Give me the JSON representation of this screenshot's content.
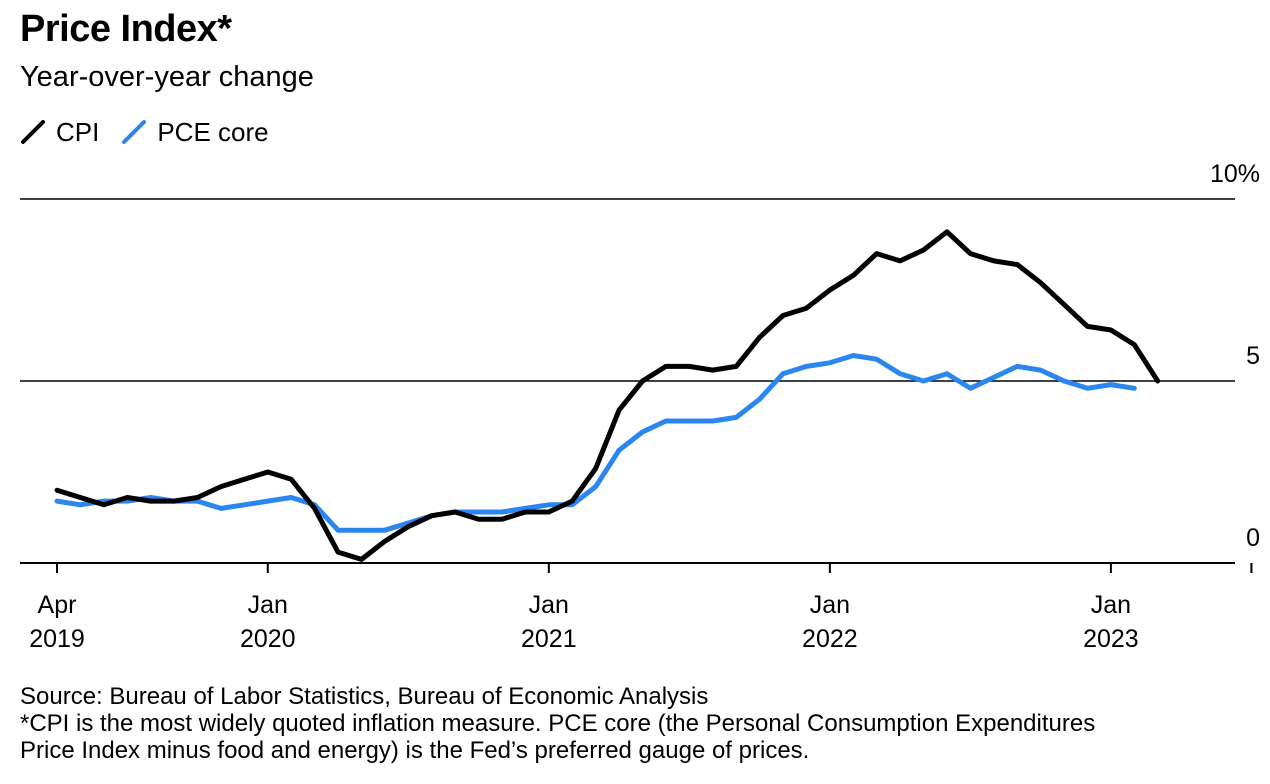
{
  "header": {
    "title": "Price Index*",
    "subtitle": "Year-over-year change"
  },
  "legend": [
    {
      "label": "CPI",
      "color": "#000000"
    },
    {
      "label": "PCE core",
      "color": "#2b86f0"
    }
  ],
  "chart_data": {
    "type": "line",
    "title": "Price Index*",
    "subtitle": "Year-over-year change",
    "xlabel": "",
    "ylabel": "",
    "ylim": [
      0,
      10
    ],
    "y_ticks": [
      {
        "value": 10,
        "label": "10%"
      },
      {
        "value": 5,
        "label": "5"
      },
      {
        "value": 0,
        "label": "0"
      }
    ],
    "x_start": "2019-04",
    "x_end": "2023-07",
    "x_ticks": [
      {
        "month_index": 0,
        "line1": "Apr",
        "line2": "2019"
      },
      {
        "month_index": 9,
        "line1": "Jan",
        "line2": "2020"
      },
      {
        "month_index": 21,
        "line1": "Jan",
        "line2": "2021"
      },
      {
        "month_index": 33,
        "line1": "Jan",
        "line2": "2022"
      },
      {
        "month_index": 45,
        "line1": "Jan",
        "line2": "2023"
      }
    ],
    "grid_lines": [
      0,
      5,
      10
    ],
    "series": [
      {
        "name": "CPI",
        "color": "#000000",
        "start": "2019-04",
        "values": [
          2.0,
          1.8,
          1.6,
          1.8,
          1.7,
          1.7,
          1.8,
          2.1,
          2.3,
          2.5,
          2.3,
          1.5,
          0.3,
          0.1,
          0.6,
          1.0,
          1.3,
          1.4,
          1.2,
          1.2,
          1.4,
          1.4,
          1.7,
          2.6,
          4.2,
          5.0,
          5.4,
          5.4,
          5.3,
          5.4,
          6.2,
          6.8,
          7.0,
          7.5,
          7.9,
          8.5,
          8.3,
          8.6,
          9.1,
          8.5,
          8.3,
          8.2,
          7.7,
          7.1,
          6.5,
          6.4,
          6.0,
          5.0
        ]
      },
      {
        "name": "PCE core",
        "color": "#2b86f0",
        "start": "2019-04",
        "values": [
          1.7,
          1.6,
          1.7,
          1.7,
          1.8,
          1.7,
          1.7,
          1.5,
          1.6,
          1.7,
          1.8,
          1.6,
          0.9,
          0.9,
          0.9,
          1.1,
          1.3,
          1.4,
          1.4,
          1.4,
          1.5,
          1.6,
          1.6,
          2.1,
          3.1,
          3.6,
          3.9,
          3.9,
          3.9,
          4.0,
          4.5,
          5.2,
          5.4,
          5.5,
          5.7,
          5.6,
          5.2,
          5.0,
          5.2,
          4.8,
          5.1,
          5.4,
          5.3,
          5.0,
          4.8,
          4.9,
          4.8
        ]
      }
    ]
  },
  "footnotes": {
    "source": "Source: Bureau of Labor Statistics, Bureau of Economic Analysis",
    "note_line1": "*CPI is the most widely quoted inflation measure. PCE core (the Personal Consumption Expenditures",
    "note_line2": "Price Index minus food and energy) is the Fed’s preferred gauge of prices."
  }
}
